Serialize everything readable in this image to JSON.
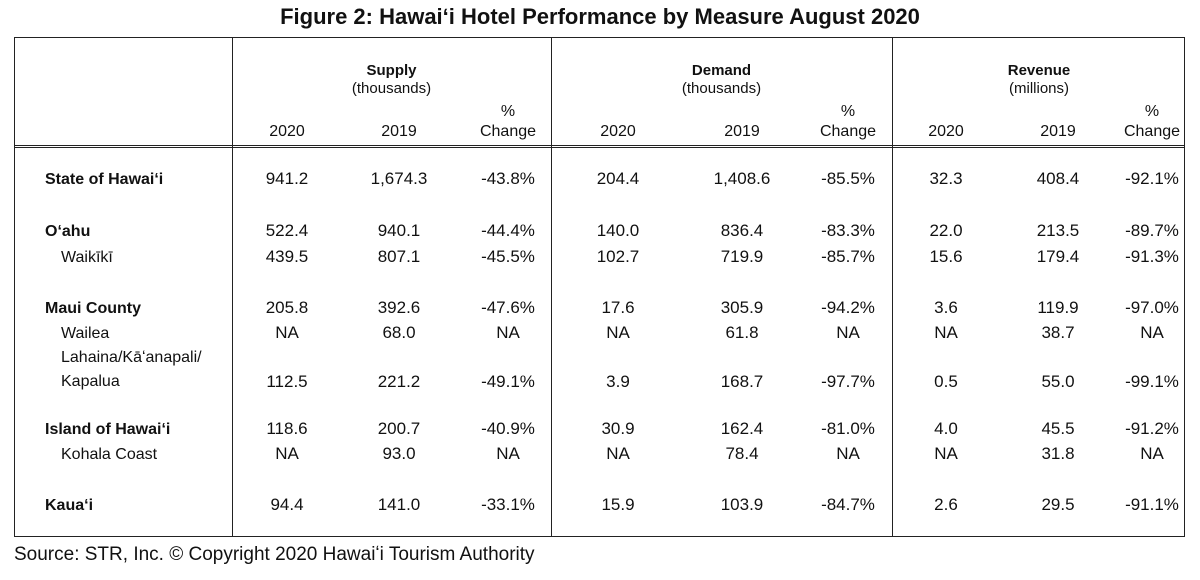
{
  "title": "Figure 2: Hawaiʻi Hotel Performance by Measure August 2020",
  "groups": [
    {
      "name": "Supply",
      "unit": "(thousands)"
    },
    {
      "name": "Demand",
      "unit": "(thousands)"
    },
    {
      "name": "Revenue",
      "unit": "(millions)"
    }
  ],
  "column_headers": {
    "y2020": "2020",
    "y2019": "2019",
    "pct_top": "%",
    "pct_bottom": "Change"
  },
  "rows": [
    {
      "label": [
        "State of Hawaiʻi"
      ],
      "bold": true,
      "values": [
        "941.2",
        "1,674.3",
        "-43.8%",
        "204.4",
        "1,408.6",
        "-85.5%",
        "32.3",
        "408.4",
        "-92.1%"
      ]
    },
    {
      "label": [
        "Oʻahu"
      ],
      "bold": true,
      "values": [
        "522.4",
        "940.1",
        "-44.4%",
        "140.0",
        "836.4",
        "-83.3%",
        "22.0",
        "213.5",
        "-89.7%"
      ]
    },
    {
      "label": [
        "Waikīkī"
      ],
      "bold": false,
      "values": [
        "439.5",
        "807.1",
        "-45.5%",
        "102.7",
        "719.9",
        "-85.7%",
        "15.6",
        "179.4",
        "-91.3%"
      ]
    },
    {
      "label": [
        "Maui County"
      ],
      "bold": true,
      "values": [
        "205.8",
        "392.6",
        "-47.6%",
        "17.6",
        "305.9",
        "-94.2%",
        "3.6",
        "119.9",
        "-97.0%"
      ]
    },
    {
      "label": [
        "Wailea"
      ],
      "bold": false,
      "values": [
        "NA",
        "68.0",
        "NA",
        "NA",
        "61.8",
        "NA",
        "NA",
        "38.7",
        "NA"
      ]
    },
    {
      "label": [
        "Lahaina/Kāʻanapali/",
        "Kapalua"
      ],
      "bold": false,
      "values": [
        "112.5",
        "221.2",
        "-49.1%",
        "3.9",
        "168.7",
        "-97.7%",
        "0.5",
        "55.0",
        "-99.1%"
      ]
    },
    {
      "label": [
        "Island of Hawaiʻi"
      ],
      "bold": true,
      "values": [
        "118.6",
        "200.7",
        "-40.9%",
        "30.9",
        "162.4",
        "-81.0%",
        "4.0",
        "45.5",
        "-91.2%"
      ]
    },
    {
      "label": [
        "Kohala Coast"
      ],
      "bold": false,
      "values": [
        "NA",
        "93.0",
        "NA",
        "NA",
        "78.4",
        "NA",
        "NA",
        "31.8",
        "NA"
      ]
    },
    {
      "label": [
        "Kauaʻi"
      ],
      "bold": true,
      "values": [
        "94.4",
        "141.0",
        "-33.1%",
        "15.9",
        "103.9",
        "-84.7%",
        "2.6",
        "29.5",
        "-91.1%"
      ]
    }
  ],
  "source": "Source: STR, Inc. © Copyright 2020 Hawaiʻi Tourism Authority"
}
